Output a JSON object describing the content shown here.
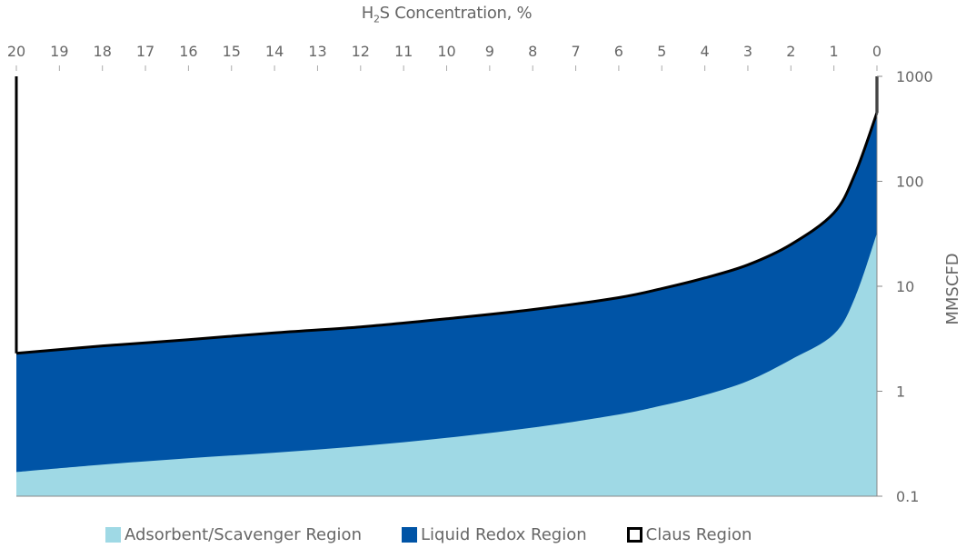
{
  "chart_data": {
    "type": "area",
    "title_parts": {
      "pre": "H",
      "sub": "2",
      "post": "S Concentration, %"
    },
    "xlabel": "H2S Concentration, %",
    "ylabel": "MMSCFD",
    "x_ticks": [
      "20",
      "19",
      "18",
      "17",
      "16",
      "15",
      "14",
      "13",
      "12",
      "11",
      "10",
      "9",
      "8",
      "7",
      "6",
      "5",
      "4",
      "3",
      "2",
      "1",
      "0"
    ],
    "y_ticks": [
      "1000",
      "100",
      "10",
      "1",
      "0.1"
    ],
    "xlim": [
      20,
      0
    ],
    "ylim": [
      0.1,
      1000
    ],
    "y_scale": "log",
    "x_axis_position": "top",
    "y_axis_position": "right",
    "x": [
      20,
      18,
      16,
      14,
      12,
      10,
      8,
      6,
      5,
      4,
      3,
      2,
      1,
      0.5,
      0
    ],
    "series": [
      {
        "name": "Adsorbent/Scavenger Region",
        "color": "#9fd9e5",
        "values": [
          0.17,
          0.2,
          0.23,
          0.26,
          0.3,
          0.36,
          0.45,
          0.6,
          0.73,
          0.92,
          1.25,
          2.0,
          3.5,
          8,
          32
        ]
      },
      {
        "name": "Liquid Redox Region",
        "color": "#0054a6",
        "values": [
          2.3,
          2.7,
          3.1,
          3.6,
          4.1,
          4.9,
          6.0,
          7.8,
          9.5,
          12,
          16,
          25,
          50,
          120,
          450
        ]
      },
      {
        "name": "Claus Region",
        "color": "#ffffff",
        "edge": "#000000",
        "values": [
          1000,
          1000,
          1000,
          1000,
          1000,
          1000,
          1000,
          1000,
          1000,
          1000,
          1000,
          1000,
          1000,
          1000,
          1000
        ]
      }
    ],
    "legend": [
      {
        "label": "Adsorbent/Scavenger Region",
        "color": "#9fd9e5",
        "border": "#9fd9e5"
      },
      {
        "label": "Liquid Redox Region",
        "color": "#0054a6",
        "border": "#0054a6"
      },
      {
        "label": "Claus Region",
        "color": "#ffffff",
        "border": "#000000"
      }
    ],
    "legend_placement": "bottom",
    "grid": false
  }
}
